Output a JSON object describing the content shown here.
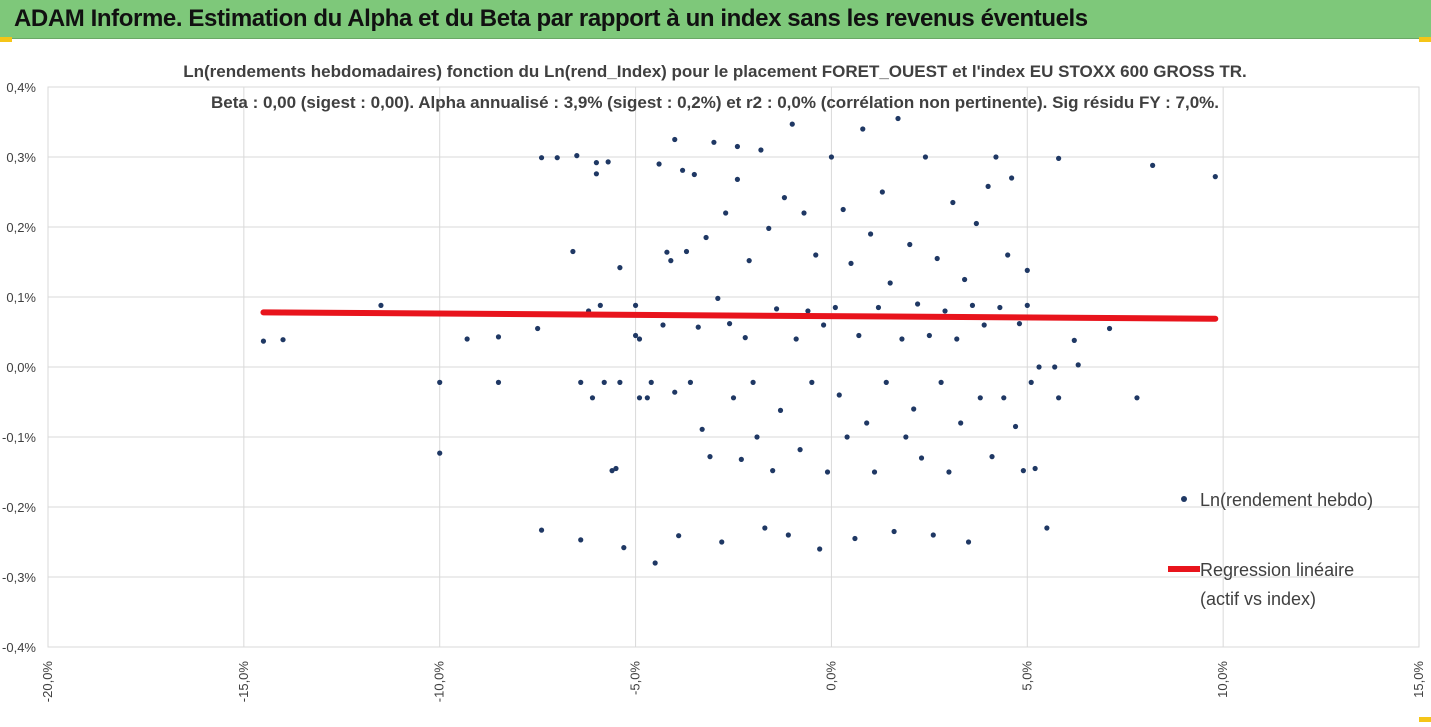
{
  "header": {
    "title": "ADAM Informe. Estimation du Alpha et du Beta par rapport à un index sans les revenus éventuels"
  },
  "colors": {
    "header_bg": "#7ec87a",
    "points": "#1f3864",
    "regression": "#e8141c",
    "grid": "#d9d9d9",
    "corner_marks": "#f5c518"
  },
  "chart_data": {
    "type": "scatter",
    "title": "Ln(rendements hebdomadaires) fonction du Ln(rend_Index) pour le placement FORET_OUEST et l'index EU STOXX 600 GROSS TR.",
    "subtitle": "Beta : 0,00 (sigest : 0,00). Alpha annualisé : 3,9% (sigest : 0,2%) et r2 : 0,0% (corrélation non pertinente). Sig résidu FY : 7,0%.",
    "xlim": [
      -0.2,
      0.15
    ],
    "ylim": [
      -0.004,
      0.004
    ],
    "x_ticks": [
      -0.2,
      -0.15,
      -0.1,
      -0.05,
      0.0,
      0.05,
      0.1,
      0.15
    ],
    "x_tick_labels": [
      "-20,0%",
      "-15,0%",
      "-10,0%",
      "-5,0%",
      "0,0%",
      "5,0%",
      "10,0%",
      "15,0%"
    ],
    "y_ticks": [
      0.004,
      0.003,
      0.002,
      0.001,
      0.0,
      -0.001,
      -0.002,
      -0.003,
      -0.004
    ],
    "y_tick_labels": [
      "0,4%",
      "0,3%",
      "0,2%",
      "0,1%",
      "0,0%",
      "-0,1%",
      "-0,2%",
      "-0,3%",
      "-0,4%"
    ],
    "grid": true,
    "legend_position": "right",
    "series": [
      {
        "name": "Ln(rendement hebdo)",
        "type": "scatter",
        "points": [
          [
            -0.145,
            0.00037
          ],
          [
            -0.14,
            0.00039
          ],
          [
            -0.115,
            0.00088
          ],
          [
            -0.1,
            -0.00022
          ],
          [
            -0.1,
            -0.00123
          ],
          [
            -0.093,
            0.0004
          ],
          [
            -0.085,
            0.00043
          ],
          [
            -0.085,
            -0.00022
          ],
          [
            -0.075,
            0.00055
          ],
          [
            -0.074,
            0.00299
          ],
          [
            -0.074,
            -0.00233
          ],
          [
            -0.07,
            0.00299
          ],
          [
            -0.066,
            0.00165
          ],
          [
            -0.065,
            0.00302
          ],
          [
            -0.064,
            -0.00022
          ],
          [
            -0.064,
            -0.00247
          ],
          [
            -0.062,
            0.0008
          ],
          [
            -0.061,
            -0.00044
          ],
          [
            -0.06,
            0.00276
          ],
          [
            -0.06,
            0.00292
          ],
          [
            -0.059,
            0.00088
          ],
          [
            -0.058,
            -0.00022
          ],
          [
            -0.057,
            0.00293
          ],
          [
            -0.056,
            -0.00148
          ],
          [
            -0.055,
            -0.00145
          ],
          [
            -0.054,
            -0.00022
          ],
          [
            -0.054,
            0.00142
          ],
          [
            -0.053,
            -0.00258
          ],
          [
            -0.05,
            0.00088
          ],
          [
            -0.05,
            0.00045
          ],
          [
            -0.049,
            -0.00044
          ],
          [
            -0.049,
            0.0004
          ],
          [
            -0.047,
            -0.00044
          ],
          [
            -0.046,
            -0.00022
          ],
          [
            -0.045,
            -0.0028
          ],
          [
            -0.044,
            0.0029
          ],
          [
            -0.043,
            0.0006
          ],
          [
            -0.042,
            0.00164
          ],
          [
            -0.041,
            0.00152
          ],
          [
            -0.04,
            0.00325
          ],
          [
            -0.04,
            -0.00036
          ],
          [
            -0.039,
            -0.00241
          ],
          [
            -0.038,
            0.00281
          ],
          [
            -0.037,
            0.00165
          ],
          [
            -0.036,
            -0.00022
          ],
          [
            -0.035,
            0.00275
          ],
          [
            -0.034,
            0.00057
          ],
          [
            -0.033,
            -0.00089
          ],
          [
            -0.032,
            0.00185
          ],
          [
            -0.031,
            -0.00128
          ],
          [
            -0.03,
            0.00321
          ],
          [
            -0.029,
            0.00098
          ],
          [
            -0.028,
            -0.0025
          ],
          [
            -0.027,
            0.0022
          ],
          [
            -0.026,
            0.00062
          ],
          [
            -0.025,
            -0.00044
          ],
          [
            -0.024,
            0.00315
          ],
          [
            -0.024,
            0.00268
          ],
          [
            -0.023,
            -0.00132
          ],
          [
            -0.022,
            0.00042
          ],
          [
            -0.021,
            0.00152
          ],
          [
            -0.02,
            -0.00022
          ],
          [
            -0.019,
            -0.001
          ],
          [
            -0.018,
            0.0031
          ],
          [
            -0.017,
            -0.0023
          ],
          [
            -0.016,
            0.00198
          ],
          [
            -0.015,
            -0.00148
          ],
          [
            -0.014,
            0.00083
          ],
          [
            -0.013,
            -0.00062
          ],
          [
            -0.012,
            0.00242
          ],
          [
            -0.011,
            -0.0024
          ],
          [
            -0.01,
            0.00347
          ],
          [
            -0.009,
            0.0004
          ],
          [
            -0.008,
            -0.00118
          ],
          [
            -0.007,
            0.0022
          ],
          [
            -0.006,
            0.0008
          ],
          [
            -0.005,
            -0.00022
          ],
          [
            -0.004,
            0.0016
          ],
          [
            -0.003,
            -0.0026
          ],
          [
            -0.002,
            0.0006
          ],
          [
            -0.001,
            -0.0015
          ],
          [
            0.0,
            0.003
          ],
          [
            0.001,
            0.00085
          ],
          [
            0.002,
            -0.0004
          ],
          [
            0.003,
            0.00225
          ],
          [
            0.004,
            -0.001
          ],
          [
            0.005,
            0.00148
          ],
          [
            0.006,
            -0.00245
          ],
          [
            0.007,
            0.00045
          ],
          [
            0.008,
            0.0034
          ],
          [
            0.009,
            -0.0008
          ],
          [
            0.01,
            0.0019
          ],
          [
            0.011,
            -0.0015
          ],
          [
            0.012,
            0.00085
          ],
          [
            0.013,
            0.0025
          ],
          [
            0.014,
            -0.00022
          ],
          [
            0.015,
            0.0012
          ],
          [
            0.016,
            -0.00235
          ],
          [
            0.017,
            0.00355
          ],
          [
            0.018,
            0.0004
          ],
          [
            0.019,
            -0.001
          ],
          [
            0.02,
            0.00175
          ],
          [
            0.021,
            -0.0006
          ],
          [
            0.022,
            0.0009
          ],
          [
            0.023,
            -0.0013
          ],
          [
            0.024,
            0.003
          ],
          [
            0.025,
            0.00045
          ],
          [
            0.026,
            -0.0024
          ],
          [
            0.027,
            0.00155
          ],
          [
            0.028,
            -0.00022
          ],
          [
            0.029,
            0.0008
          ],
          [
            0.03,
            -0.0015
          ],
          [
            0.031,
            0.00235
          ],
          [
            0.032,
            0.0004
          ],
          [
            0.033,
            -0.0008
          ],
          [
            0.034,
            0.00125
          ],
          [
            0.035,
            -0.0025
          ],
          [
            0.036,
            0.00088
          ],
          [
            0.037,
            0.00205
          ],
          [
            0.038,
            -0.00044
          ],
          [
            0.039,
            0.0006
          ],
          [
            0.04,
            0.00258
          ],
          [
            0.041,
            -0.00128
          ],
          [
            0.042,
            0.003
          ],
          [
            0.043,
            0.00085
          ],
          [
            0.044,
            -0.00044
          ],
          [
            0.045,
            0.0016
          ],
          [
            0.046,
            0.0027
          ],
          [
            0.047,
            -0.00085
          ],
          [
            0.048,
            0.00062
          ],
          [
            0.049,
            -0.00148
          ],
          [
            0.05,
            0.00088
          ],
          [
            0.05,
            0.00138
          ],
          [
            0.051,
            -0.00022
          ],
          [
            0.052,
            -0.00145
          ],
          [
            0.053,
            0.0
          ],
          [
            0.055,
            -0.0023
          ],
          [
            0.057,
            0.0
          ],
          [
            0.058,
            0.00298
          ],
          [
            0.058,
            -0.00044
          ],
          [
            0.062,
            0.00038
          ],
          [
            0.063,
            3e-05
          ],
          [
            0.071,
            0.00055
          ],
          [
            0.078,
            -0.00044
          ],
          [
            0.082,
            0.00288
          ],
          [
            0.098,
            0.00272
          ]
        ]
      },
      {
        "name": "Regression linéaire (actif vs index)",
        "type": "line",
        "points": [
          [
            -0.145,
            0.00078
          ],
          [
            0.098,
            0.00069
          ]
        ]
      }
    ]
  }
}
